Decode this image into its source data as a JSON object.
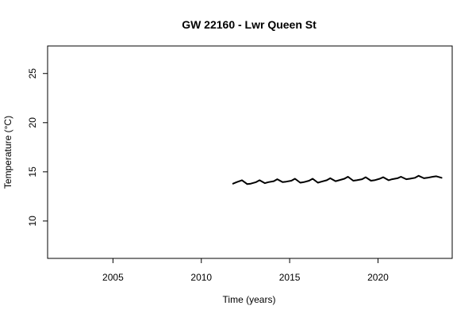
{
  "chart_data": {
    "type": "line",
    "title": "GW 22160 - Lwr Queen St",
    "xlabel": "Time (years)",
    "ylabel": "Temperature (°C)",
    "xlim": [
      2001.3,
      2024.2
    ],
    "ylim": [
      6.2,
      27.8
    ],
    "x_ticks": [
      2005,
      2010,
      2015,
      2020
    ],
    "y_ticks": [
      10,
      15,
      20,
      25
    ],
    "x_tick_labels": [
      "2005",
      "2010",
      "2015",
      "2020"
    ],
    "y_tick_labels": [
      "10",
      "15",
      "20",
      "25"
    ],
    "grid": false,
    "legend": "none",
    "series": [
      {
        "color": "#000000",
        "x": [
          2011.8,
          2012.0,
          2012.3,
          2012.6,
          2012.8,
          2013.1,
          2013.3,
          2013.6,
          2013.8,
          2014.1,
          2014.3,
          2014.6,
          2014.8,
          2015.1,
          2015.3,
          2015.6,
          2015.8,
          2016.1,
          2016.3,
          2016.6,
          2016.8,
          2017.1,
          2017.3,
          2017.6,
          2017.8,
          2018.1,
          2018.3,
          2018.6,
          2018.8,
          2019.1,
          2019.3,
          2019.6,
          2019.8,
          2020.1,
          2020.3,
          2020.6,
          2020.8,
          2021.1,
          2021.3,
          2021.6,
          2021.8,
          2022.1,
          2022.3,
          2022.6,
          2022.8,
          2023.1,
          2023.3,
          2023.6
        ],
        "y": [
          13.8,
          13.95,
          14.15,
          13.75,
          13.8,
          13.95,
          14.15,
          13.85,
          13.95,
          14.05,
          14.25,
          13.95,
          14.0,
          14.1,
          14.3,
          13.9,
          13.95,
          14.1,
          14.3,
          13.9,
          14.0,
          14.15,
          14.35,
          14.05,
          14.15,
          14.3,
          14.5,
          14.1,
          14.15,
          14.25,
          14.45,
          14.1,
          14.15,
          14.3,
          14.45,
          14.15,
          14.25,
          14.35,
          14.5,
          14.25,
          14.3,
          14.4,
          14.6,
          14.35,
          14.4,
          14.5,
          14.55,
          14.4
        ]
      }
    ]
  }
}
